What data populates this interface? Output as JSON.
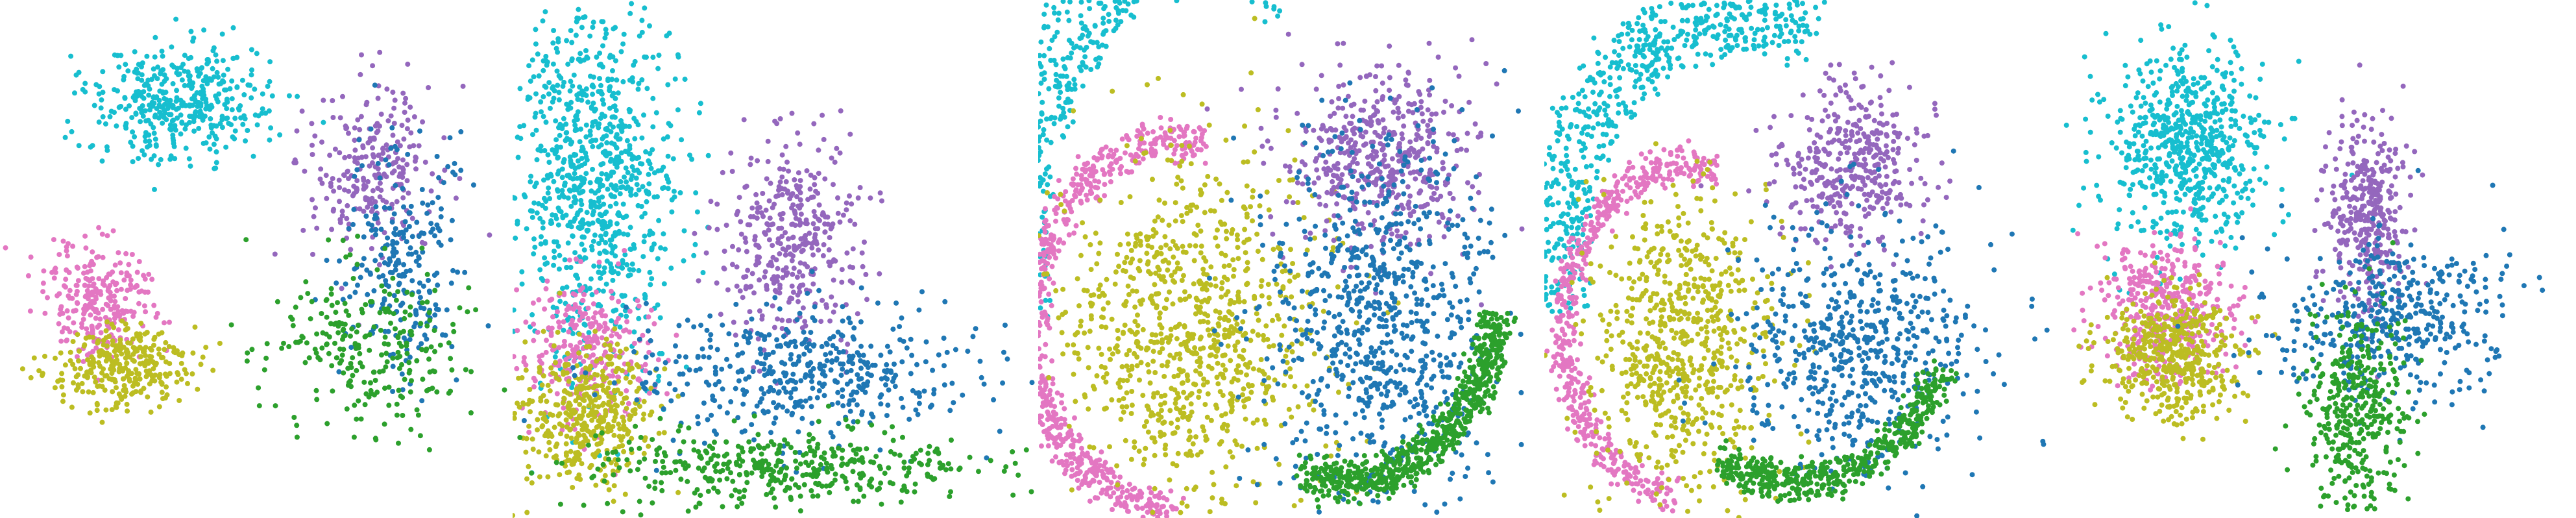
{
  "chart_data": {
    "type": "scatter",
    "title": "",
    "xlabel": "",
    "ylabel": "",
    "grid": false,
    "axes_visible": false,
    "legend": "none",
    "point_colors": [
      "#17becf",
      "#e377c2",
      "#bcbd22",
      "#9467bd",
      "#1f77b4",
      "#2ca02c"
    ],
    "panels": [
      {
        "id": "panel-1",
        "clusters": [
          {
            "color": "#17becf",
            "count": 420,
            "shape": "ellipse",
            "center": [
              0.35,
              0.2
            ],
            "radius": [
              0.16,
              0.1
            ]
          },
          {
            "color": "#e377c2",
            "count": 260,
            "shape": "ellipse",
            "center": [
              0.19,
              0.58
            ],
            "radius": [
              0.1,
              0.1
            ]
          },
          {
            "color": "#bcbd22",
            "count": 300,
            "shape": "ellipse",
            "center": [
              0.24,
              0.71
            ],
            "radius": [
              0.12,
              0.07
            ]
          },
          {
            "color": "#9467bd",
            "count": 260,
            "shape": "ellipse",
            "center": [
              0.73,
              0.32
            ],
            "radius": [
              0.12,
              0.15
            ]
          },
          {
            "color": "#1f77b4",
            "count": 240,
            "shape": "ellipse",
            "center": [
              0.78,
              0.5
            ],
            "radius": [
              0.1,
              0.2
            ]
          },
          {
            "color": "#2ca02c",
            "count": 260,
            "shape": "ellipse",
            "center": [
              0.72,
              0.67
            ],
            "radius": [
              0.18,
              0.16
            ]
          }
        ]
      },
      {
        "id": "panel-2",
        "clusters": [
          {
            "color": "#17becf",
            "count": 900,
            "shape": "ellipse",
            "center": [
              0.15,
              0.34
            ],
            "radius": [
              0.14,
              0.32
            ]
          },
          {
            "color": "#e377c2",
            "count": 280,
            "shape": "ellipse",
            "center": [
              0.14,
              0.68
            ],
            "radius": [
              0.12,
              0.12
            ]
          },
          {
            "color": "#bcbd22",
            "count": 420,
            "shape": "ellipse",
            "center": [
              0.14,
              0.8
            ],
            "radius": [
              0.12,
              0.12
            ]
          },
          {
            "color": "#9467bd",
            "count": 380,
            "shape": "ellipse",
            "center": [
              0.53,
              0.46
            ],
            "radius": [
              0.12,
              0.18
            ]
          },
          {
            "color": "#1f77b4",
            "count": 460,
            "shape": "ellipse",
            "center": [
              0.55,
              0.72
            ],
            "radius": [
              0.3,
              0.12
            ]
          },
          {
            "color": "#2ca02c",
            "count": 420,
            "shape": "ellipse",
            "center": [
              0.53,
              0.9
            ],
            "radius": [
              0.35,
              0.07
            ]
          }
        ]
      },
      {
        "id": "panel-3",
        "clusters": [
          {
            "color": "#17becf",
            "count": 900,
            "shape": "arc",
            "center": [
              0.32,
              0.48
            ],
            "radius": [
              0.36,
              0.6
            ],
            "angle_start": 165,
            "angle_end": 300,
            "thickness": 0.16
          },
          {
            "color": "#e377c2",
            "count": 700,
            "shape": "arc",
            "center": [
              0.28,
              0.63
            ],
            "radius": [
              0.29,
              0.36
            ],
            "angle_start": 90,
            "angle_end": 280,
            "thickness": 0.09
          },
          {
            "color": "#bcbd22",
            "count": 900,
            "shape": "ellipse",
            "center": [
              0.3,
              0.64
            ],
            "radius": [
              0.23,
              0.33
            ]
          },
          {
            "color": "#9467bd",
            "count": 500,
            "shape": "ellipse",
            "center": [
              0.67,
              0.3
            ],
            "radius": [
              0.16,
              0.17
            ]
          },
          {
            "color": "#1f77b4",
            "count": 800,
            "shape": "ellipse",
            "center": [
              0.67,
              0.62
            ],
            "radius": [
              0.2,
              0.33
            ]
          },
          {
            "color": "#2ca02c",
            "count": 700,
            "shape": "arc",
            "center": [
              0.6,
              0.6
            ],
            "radius": [
              0.3,
              0.33
            ],
            "angle_start": 0,
            "angle_end": 105,
            "thickness": 0.09
          }
        ]
      },
      {
        "id": "panel-4",
        "clusters": [
          {
            "color": "#17becf",
            "count": 700,
            "shape": "arc",
            "center": [
              0.4,
              0.52
            ],
            "radius": [
              0.38,
              0.5
            ],
            "angle_start": 170,
            "angle_end": 290,
            "thickness": 0.15
          },
          {
            "color": "#e377c2",
            "count": 520,
            "shape": "arc",
            "center": [
              0.28,
              0.64
            ],
            "radius": [
              0.24,
              0.32
            ],
            "angle_start": 95,
            "angle_end": 285,
            "thickness": 0.08
          },
          {
            "color": "#bcbd22",
            "count": 700,
            "shape": "ellipse",
            "center": [
              0.27,
              0.66
            ],
            "radius": [
              0.17,
              0.27
            ]
          },
          {
            "color": "#9467bd",
            "count": 380,
            "shape": "ellipse",
            "center": [
              0.61,
              0.32
            ],
            "radius": [
              0.14,
              0.14
            ]
          },
          {
            "color": "#1f77b4",
            "count": 600,
            "shape": "ellipse",
            "center": [
              0.62,
              0.67
            ],
            "radius": [
              0.22,
              0.22
            ]
          },
          {
            "color": "#2ca02c",
            "count": 500,
            "shape": "arc",
            "center": [
              0.5,
              0.6
            ],
            "radius": [
              0.3,
              0.33
            ],
            "angle_start": 20,
            "angle_end": 120,
            "thickness": 0.08
          }
        ]
      },
      {
        "id": "panel-5",
        "clusters": [
          {
            "color": "#17becf",
            "count": 650,
            "shape": "ellipse",
            "center": [
              0.26,
              0.28
            ],
            "radius": [
              0.14,
              0.17
            ]
          },
          {
            "color": "#e377c2",
            "count": 400,
            "shape": "ellipse",
            "center": [
              0.22,
              0.6
            ],
            "radius": [
              0.12,
              0.12
            ]
          },
          {
            "color": "#bcbd22",
            "count": 450,
            "shape": "ellipse",
            "center": [
              0.23,
              0.69
            ],
            "radius": [
              0.12,
              0.11
            ]
          },
          {
            "color": "#9467bd",
            "count": 360,
            "shape": "ellipse",
            "center": [
              0.6,
              0.42
            ],
            "radius": [
              0.07,
              0.16
            ]
          },
          {
            "color": "#1f77b4",
            "count": 420,
            "shape": "ellipse",
            "center": [
              0.64,
              0.62
            ],
            "radius": [
              0.2,
              0.14
            ]
          },
          {
            "color": "#2ca02c",
            "count": 380,
            "shape": "ellipse",
            "center": [
              0.58,
              0.8
            ],
            "radius": [
              0.09,
              0.18
            ]
          }
        ]
      }
    ]
  }
}
